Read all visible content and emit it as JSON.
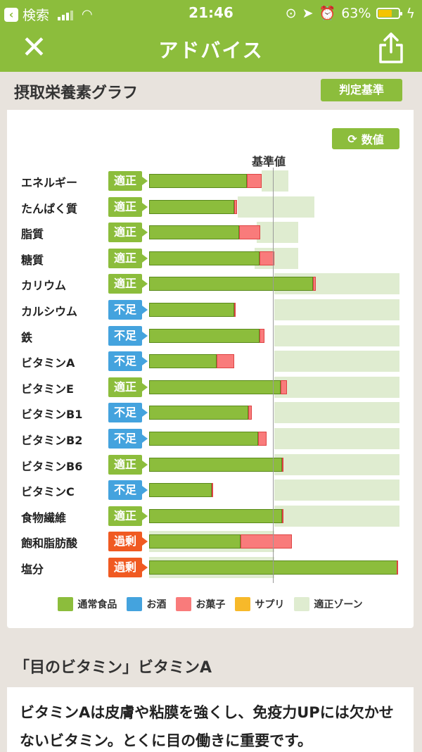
{
  "status": {
    "back_label": "検索",
    "time": "21:46",
    "battery": "63%"
  },
  "nav": {
    "title": "アドバイス"
  },
  "section": {
    "title": "摂取栄養素グラフ",
    "criteria_button": "判定基準",
    "value_button": "数値"
  },
  "chart_data": {
    "type": "bar",
    "reference_label": "基準値",
    "categories": [
      "エネルギー",
      "たんぱく質",
      "脂質",
      "糖質",
      "カリウム",
      "カルシウム",
      "鉄",
      "ビタミンA",
      "ビタミンE",
      "ビタミンB1",
      "ビタミンB2",
      "ビタミンB6",
      "ビタミンC",
      "食物繊維",
      "飽和脂肪酸",
      "塩分"
    ],
    "status": [
      "適正",
      "適正",
      "適正",
      "適正",
      "適正",
      "不足",
      "不足",
      "不足",
      "適正",
      "不足",
      "不足",
      "適正",
      "不足",
      "適正",
      "過剰",
      "過剰"
    ],
    "series": [
      {
        "name": "通常食品",
        "values": [
          78,
          68,
          72,
          88,
          131,
          68,
          88,
          54,
          105,
          79,
          87,
          106,
          50,
          106,
          73,
          199
        ]
      },
      {
        "name": "お菓子",
        "values": [
          12,
          2,
          17,
          12,
          2,
          1,
          4,
          14,
          5,
          3,
          7,
          1,
          1,
          1,
          41,
          1
        ]
      }
    ],
    "zone": [
      [
        90,
        111
      ],
      [
        71,
        132
      ],
      [
        86,
        119
      ],
      [
        84,
        119
      ],
      [
        100,
        200
      ],
      [
        100,
        200
      ],
      [
        100,
        200
      ],
      [
        100,
        200
      ],
      [
        100,
        200
      ],
      [
        100,
        200
      ],
      [
        100,
        200
      ],
      [
        100,
        200
      ],
      [
        100,
        200
      ],
      [
        100,
        200
      ],
      [
        0,
        100
      ],
      [
        0,
        100
      ]
    ],
    "reference_value": 100,
    "legend": [
      "通常食品",
      "お酒",
      "お菓子",
      "サプリ",
      "適正ゾーン"
    ],
    "legend_colors": [
      "#8cbd3c",
      "#44a3de",
      "#f97b7b",
      "#f7b92a",
      "#dfecd0"
    ]
  },
  "colors": {
    "accent": "#8cbd3c",
    "ok": "#8cbd3c",
    "low": "#44a3de",
    "over": "#f05a22"
  },
  "article": {
    "title": "「目のビタミン」ビタミンA",
    "body": "ビタミンAは皮膚や粘膜を強くし、免疫力UPには欠かせないビタミン。とくに目の働きに重要です。"
  }
}
